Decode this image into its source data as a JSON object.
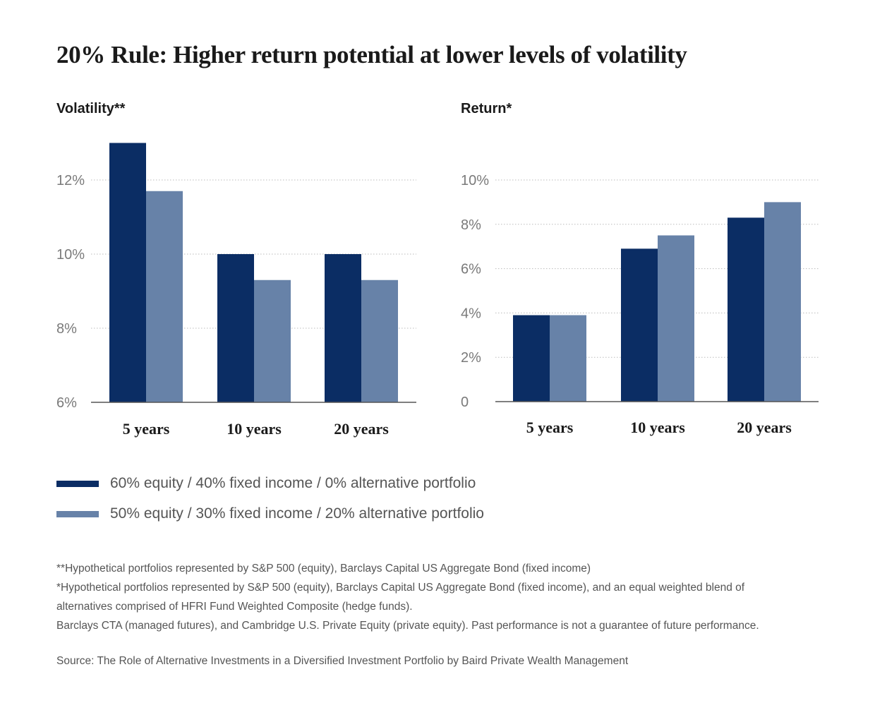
{
  "title": "20% Rule: Higher return potential at lower levels of volatility",
  "colors": {
    "series1": "#0b2d64",
    "series2": "#6782a8",
    "grid": "#bbbbbb",
    "axis": "#555555"
  },
  "chart_data": [
    {
      "type": "bar",
      "title": "Volatility**",
      "categories": [
        "5 years",
        "10 years",
        "20 years"
      ],
      "series": [
        {
          "name": "60% equity / 40% fixed income / 0% alternative portfolio",
          "values": [
            13.0,
            10.0,
            10.0
          ]
        },
        {
          "name": "50% equity / 30% fixed income / 20% alternative portfolio",
          "values": [
            11.7,
            9.3,
            9.3
          ]
        }
      ],
      "yticks": [
        6,
        8,
        10,
        12
      ],
      "ytick_labels": [
        "6%",
        "8%",
        "10%",
        "12%"
      ],
      "ylim": [
        6,
        13
      ],
      "xlabel": "",
      "ylabel": "",
      "grid": "dotted horizontal"
    },
    {
      "type": "bar",
      "title": "Return*",
      "categories": [
        "5 years",
        "10 years",
        "20 years"
      ],
      "series": [
        {
          "name": "60% equity / 40% fixed income / 0% alternative portfolio",
          "values": [
            3.9,
            6.9,
            8.3
          ]
        },
        {
          "name": "50% equity / 30% fixed income / 20% alternative portfolio",
          "values": [
            3.9,
            7.5,
            9.0
          ]
        }
      ],
      "yticks": [
        0,
        2,
        4,
        6,
        8,
        10
      ],
      "ytick_labels": [
        "0",
        "2%",
        "4%",
        "6%",
        "8%",
        "10%"
      ],
      "ylim": [
        0,
        10
      ],
      "xlabel": "",
      "ylabel": "",
      "grid": "dotted horizontal"
    }
  ],
  "legend": [
    {
      "label": "60% equity / 40% fixed income / 0% alternative portfolio"
    },
    {
      "label": "50% equity / 30% fixed income / 20% alternative portfolio"
    }
  ],
  "notes": [
    "**Hypothetical portfolios represented by S&P 500 (equity), Barclays Capital US Aggregate Bond (fixed income)",
    "*Hypothetical portfolios represented by S&P 500 (equity), Barclays Capital US Aggregate Bond (fixed income), and an equal weighted blend of",
    "alternatives comprised of HFRI Fund Weighted Composite (hedge funds).",
    "Barclays CTA (managed futures), and Cambridge U.S. Private Equity (private equity). Past performance is not a guarantee of future performance."
  ],
  "source": "Source: The Role of Alternative Investments in a Diversified Investment Portfolio by Baird Private Wealth Management"
}
